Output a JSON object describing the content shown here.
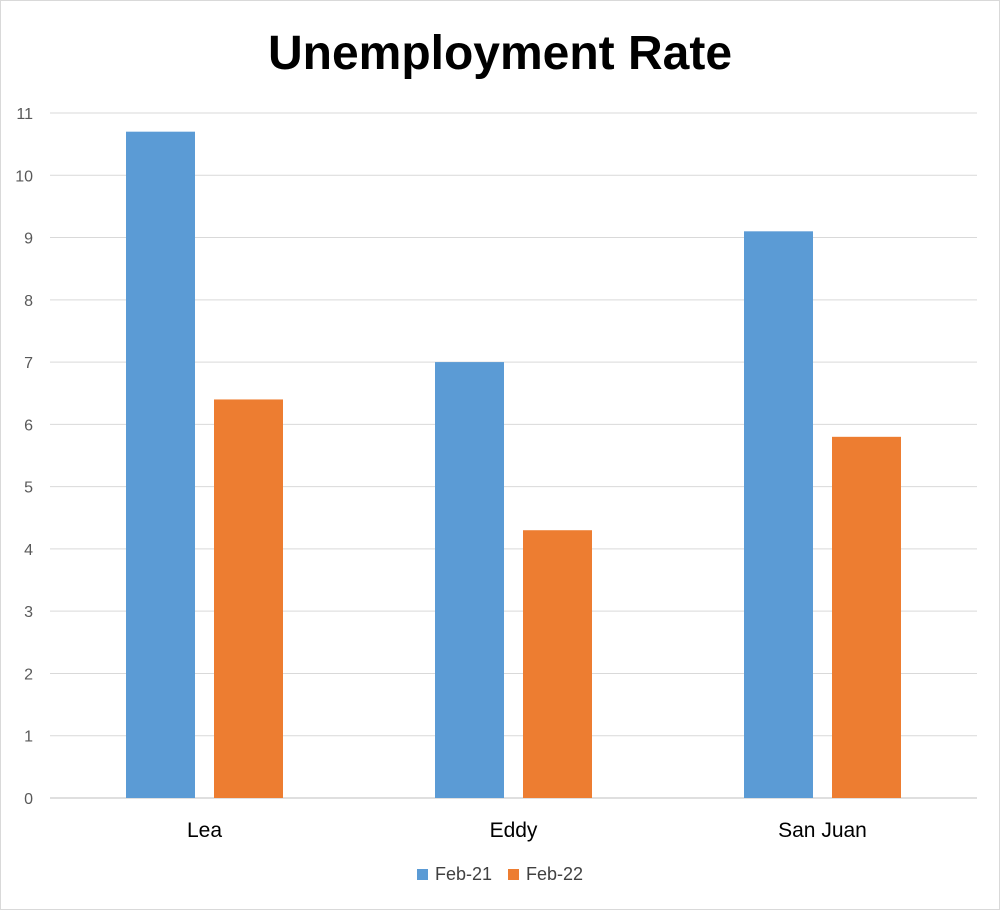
{
  "chart_data": {
    "type": "bar",
    "title": "Unemployment Rate",
    "xlabel": "",
    "ylabel": "",
    "categories": [
      "Lea",
      "Eddy",
      "San Juan"
    ],
    "series": [
      {
        "name": "Feb-21",
        "values": [
          10.7,
          7.0,
          9.1
        ],
        "color": "#5b9bd5"
      },
      {
        "name": "Feb-22",
        "values": [
          6.4,
          4.3,
          5.8
        ],
        "color": "#ed7d31"
      }
    ],
    "ylim": [
      0,
      11
    ],
    "yticks": [
      "0",
      "1",
      "2",
      "3",
      "4",
      "5",
      "6",
      "7",
      "8",
      "9",
      "10",
      "11"
    ],
    "grid": true,
    "legend_position": "bottom"
  }
}
